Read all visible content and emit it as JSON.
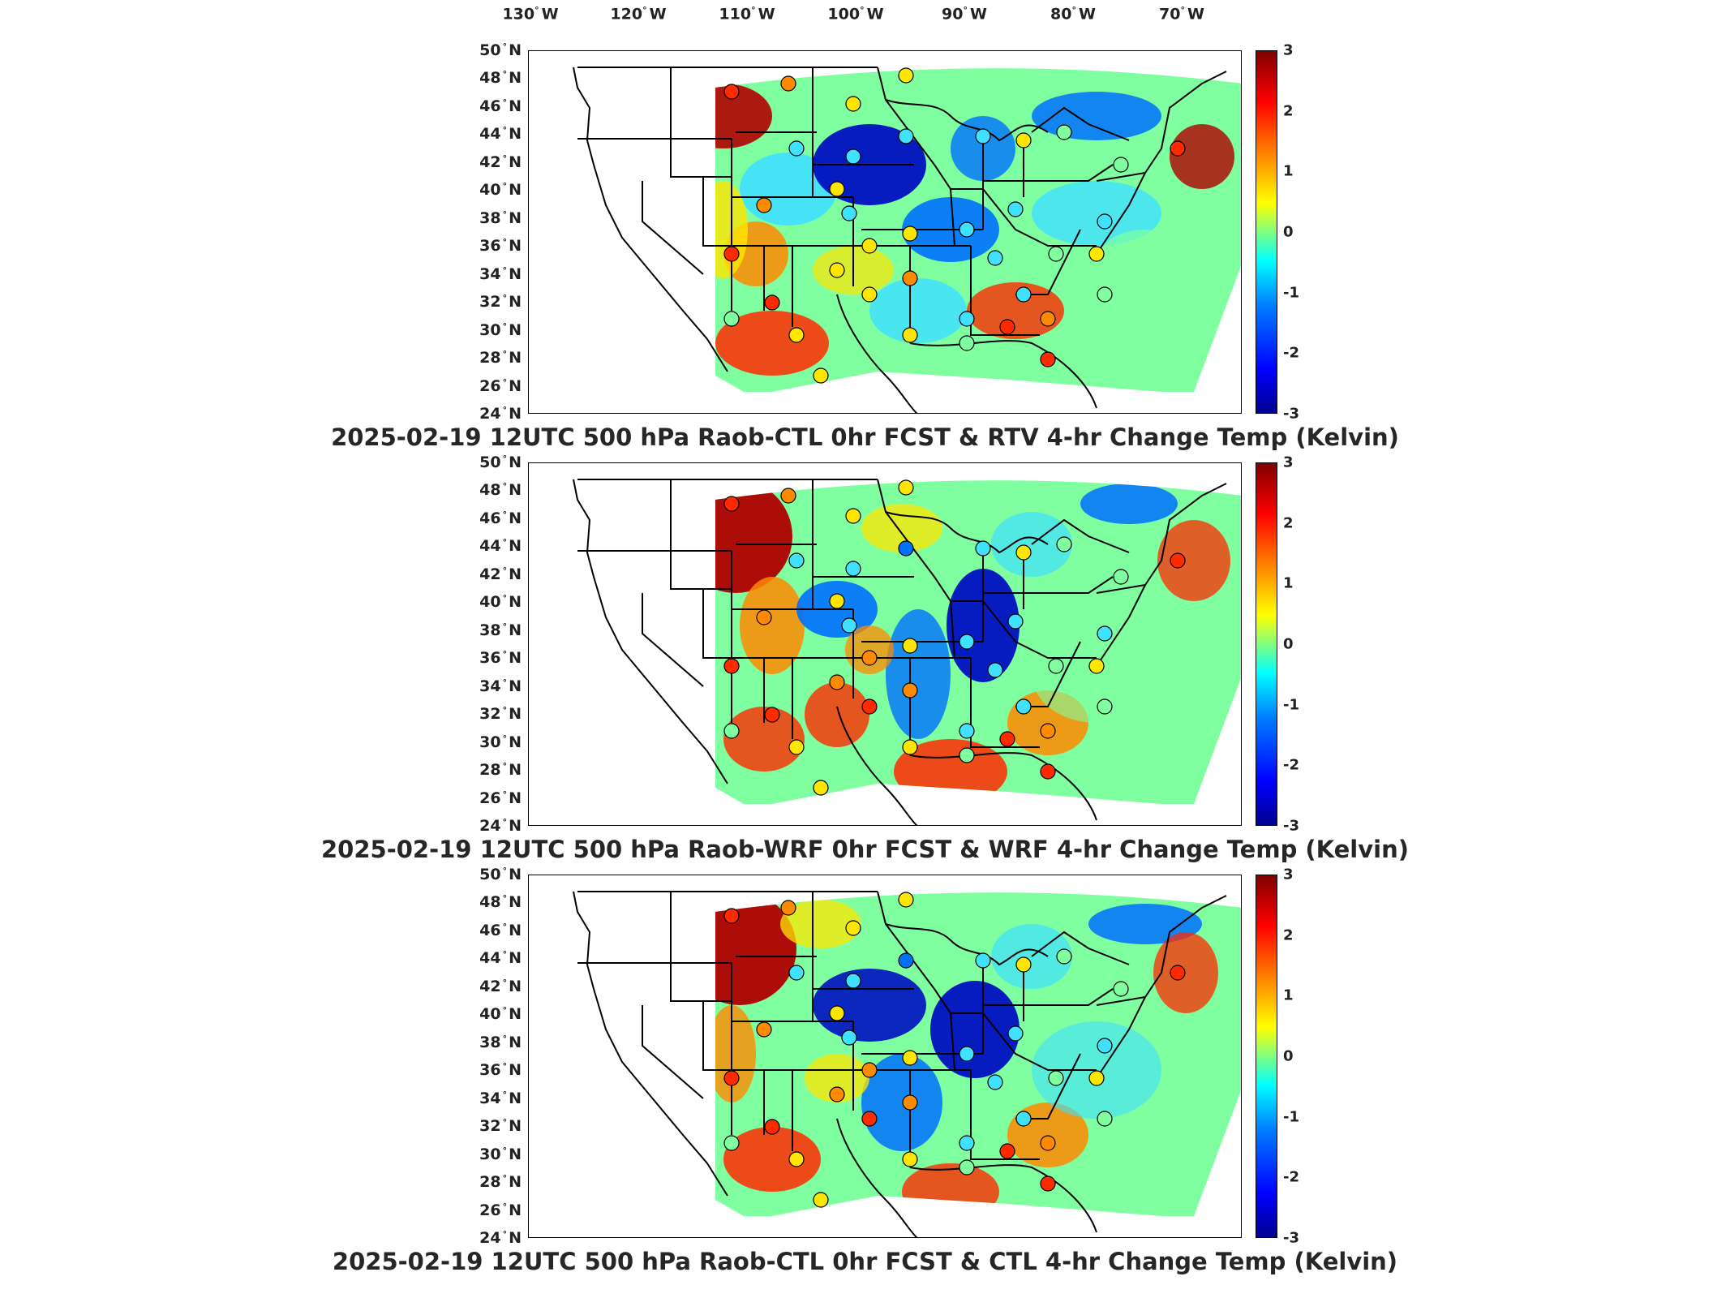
{
  "lon_labels": [
    {
      "text": "130",
      "unit": "W"
    },
    {
      "text": "120",
      "unit": "W"
    },
    {
      "text": "110",
      "unit": "W"
    },
    {
      "text": "100",
      "unit": "W"
    },
    {
      "text": "90",
      "unit": "W"
    },
    {
      "text": "80",
      "unit": "W"
    },
    {
      "text": "70",
      "unit": "W"
    }
  ],
  "lat_labels": [
    "50",
    "48",
    "46",
    "44",
    "42",
    "40",
    "38",
    "36",
    "34",
    "32",
    "30",
    "28",
    "26",
    "24"
  ],
  "lat_unit": "N",
  "degree_symbol": "°",
  "colorbar": {
    "ticks": [
      "3",
      "2",
      "1",
      "0",
      "-1",
      "-2",
      "-3"
    ],
    "range": [
      -3,
      3
    ],
    "colormap": "jet"
  },
  "panels": [
    {
      "title": "2025-02-19 12UTC 500 hPa Raob-CTL 0hr FCST & RTV 4-hr Change Temp (Kelvin)"
    },
    {
      "title": "2025-02-19 12UTC 500 hPa Raob-WRF 0hr FCST & WRF 4-hr Change Temp (Kelvin)"
    },
    {
      "title": "2025-02-19 12UTC 500 hPa Raob-CTL 0hr FCST & CTL 4-hr Change Temp (Kelvin)"
    }
  ]
}
